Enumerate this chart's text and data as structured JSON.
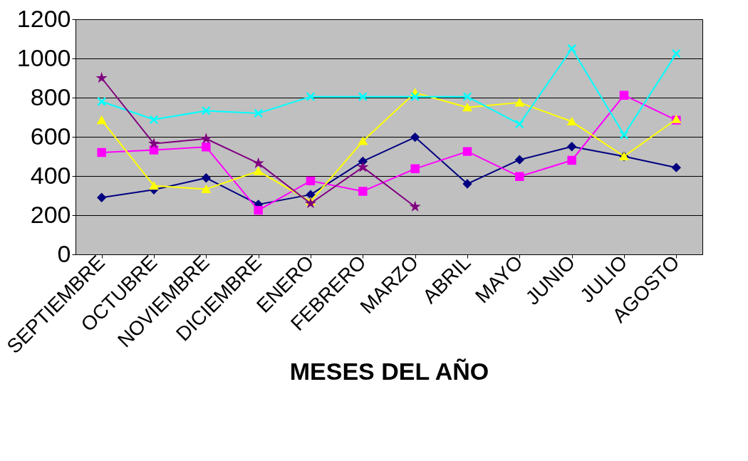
{
  "chart_data": {
    "type": "line",
    "xlabel": "MESES DEL AÑO",
    "categories": [
      "SEPTIEMBRE",
      "OCTUBRE",
      "NOVIEMBRE",
      "DICIEMBRE",
      "ENERO",
      "FEBRERO",
      "MARZO",
      "ABRIL",
      "MAYO",
      "JUNIO",
      "JULIO",
      "AGOSTO"
    ],
    "series": [
      {
        "color": "#000080",
        "marker": "diamond",
        "values": [
          290,
          330,
          390,
          255,
          305,
          475,
          598,
          360,
          483,
          550,
          500,
          443
        ]
      },
      {
        "color": "#ff00ff",
        "marker": "square",
        "values": [
          520,
          533,
          548,
          225,
          375,
          322,
          437,
          525,
          397,
          480,
          812,
          685
        ]
      },
      {
        "color": "#ffff00",
        "marker": "triangle",
        "values": [
          685,
          350,
          333,
          425,
          270,
          578,
          825,
          750,
          775,
          678,
          500,
          690
        ]
      },
      {
        "color": "#00ffff",
        "marker": "cross",
        "values": [
          780,
          688,
          733,
          720,
          805,
          805,
          805,
          805,
          665,
          1050,
          610,
          1025
        ]
      },
      {
        "color": "#800080",
        "marker": "star",
        "values": [
          900,
          565,
          590,
          465,
          260,
          445,
          243,
          null,
          null,
          null,
          null,
          null
        ]
      }
    ],
    "ylim": [
      0,
      1200
    ],
    "yticks": [
      0,
      200,
      400,
      600,
      800,
      1000,
      1200
    ],
    "grid": "y"
  }
}
